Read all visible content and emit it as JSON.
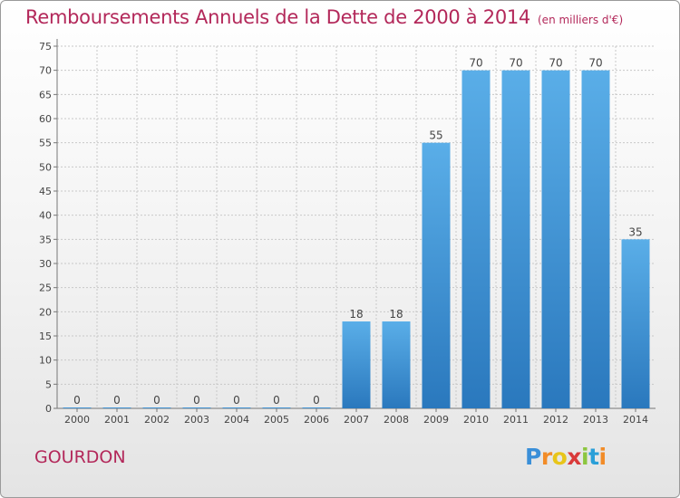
{
  "header": {
    "title": "Remboursements Annuels de la Dette de 2000 à 2014",
    "unit": "(en milliers d'€)"
  },
  "footer": {
    "commune": "GOURDON",
    "brand": "Proxiti",
    "brand_letters": [
      {
        "char": "P",
        "color": "#3a8fd8"
      },
      {
        "char": "r",
        "color": "#f28c28"
      },
      {
        "char": "o",
        "color": "#e8c51a"
      },
      {
        "char": "x",
        "color": "#d93a3a"
      },
      {
        "char": "i",
        "color": "#8cc63f"
      },
      {
        "char": "t",
        "color": "#2a9fd8"
      },
      {
        "char": "i",
        "color": "#f28c28"
      }
    ]
  },
  "colors": {
    "bar_light": "#5aaee8",
    "bar_dark": "#2a78bd",
    "title": "#b3285a",
    "grid": "#c8c8c8"
  },
  "chart_data": {
    "type": "bar",
    "title": "Remboursements Annuels de la Dette de 2000 à 2014",
    "subtitle": "(en milliers d'€)",
    "categories": [
      "2000",
      "2001",
      "2002",
      "2003",
      "2004",
      "2005",
      "2006",
      "2007",
      "2008",
      "2009",
      "2010",
      "2011",
      "2012",
      "2013",
      "2014"
    ],
    "values": [
      0,
      0,
      0,
      0,
      0,
      0,
      0,
      18,
      18,
      55,
      70,
      70,
      70,
      70,
      35
    ],
    "ylim": [
      0,
      75
    ],
    "yticks": [
      0,
      5,
      10,
      15,
      20,
      25,
      30,
      35,
      40,
      45,
      50,
      55,
      60,
      65,
      70,
      75
    ],
    "grid": true,
    "data_labels": true
  }
}
